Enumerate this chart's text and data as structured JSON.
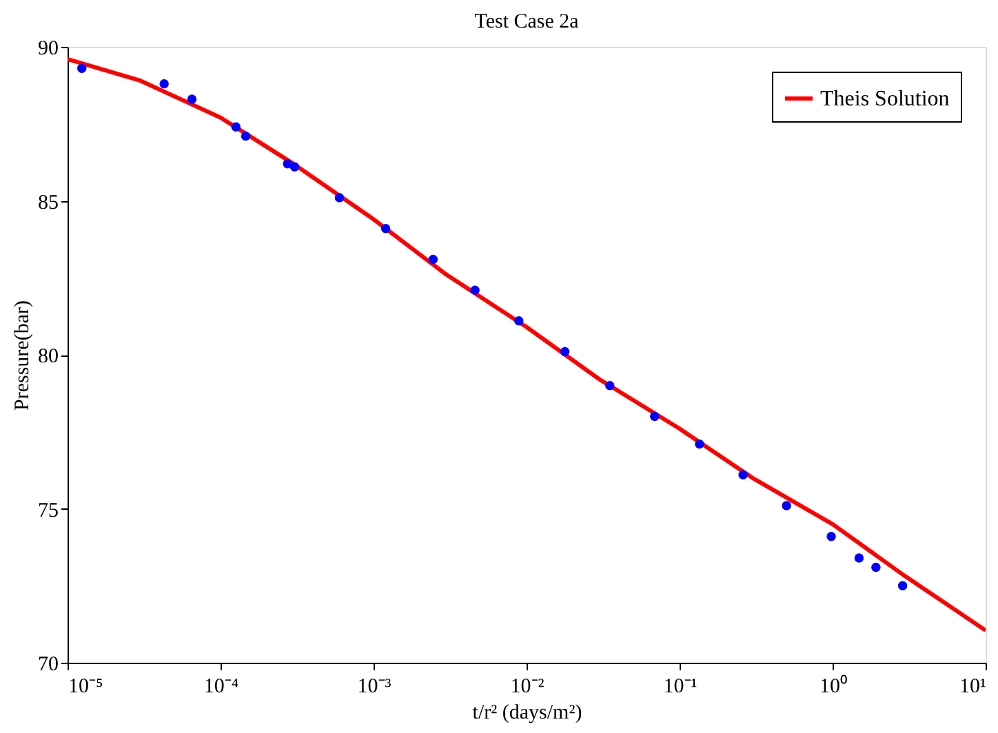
{
  "chart_data": {
    "type": "scatter",
    "title": "Test Case 2a",
    "xlabel": "t/r² (days/m²)",
    "ylabel": "Pressure(bar)",
    "log": "x",
    "xlim": [
      1e-05,
      10
    ],
    "xticks": [
      {
        "value": 1e-05,
        "label": "10⁻⁵"
      },
      {
        "value": 0.0001,
        "label": "10⁻⁴"
      },
      {
        "value": 0.001,
        "label": "10⁻³"
      },
      {
        "value": 0.01,
        "label": "10⁻²"
      },
      {
        "value": 0.1,
        "label": "10⁻¹"
      },
      {
        "value": 1,
        "label": "10⁰"
      },
      {
        "value": 10,
        "label": "10¹"
      }
    ],
    "ylim": [
      70,
      90
    ],
    "yticks": [
      70,
      75,
      80,
      85,
      90
    ],
    "grid": false,
    "legend": "top right",
    "series": [
      {
        "marker": "circle",
        "color": "#0000ff",
        "x": [
          1.24e-05,
          4.28e-05,
          6.5e-05,
          0.000126,
          0.000146,
          0.000274,
          0.000305,
          0.000598,
          0.0012,
          0.00245,
          0.0046,
          0.0089,
          0.0178,
          0.035,
          0.0687,
          0.135,
          0.26,
          0.5,
          0.98,
          1.49,
          1.92,
          2.87
        ],
        "values": [
          89.3,
          88.8,
          88.3,
          87.4,
          87.1,
          86.2,
          86.1,
          85.1,
          84.1,
          83.1,
          82.1,
          81.1,
          80.1,
          79.0,
          78.0,
          77.1,
          76.1,
          75.1,
          74.1,
          73.4,
          73.1,
          72.5
        ]
      },
      {
        "type": "line",
        "name": "Theis Solution",
        "color": "#ff0000",
        "marker": "none",
        "line_style": "solid",
        "x": [
          1e-05,
          3e-05,
          0.0001,
          0.0003,
          0.001,
          0.003,
          0.01,
          0.03,
          0.1,
          0.3,
          1,
          3,
          10
        ],
        "values": [
          89.6,
          88.9,
          87.7,
          86.2,
          84.4,
          82.6,
          80.9,
          79.2,
          77.6,
          76.0,
          74.5,
          72.8,
          71.05
        ]
      }
    ]
  }
}
